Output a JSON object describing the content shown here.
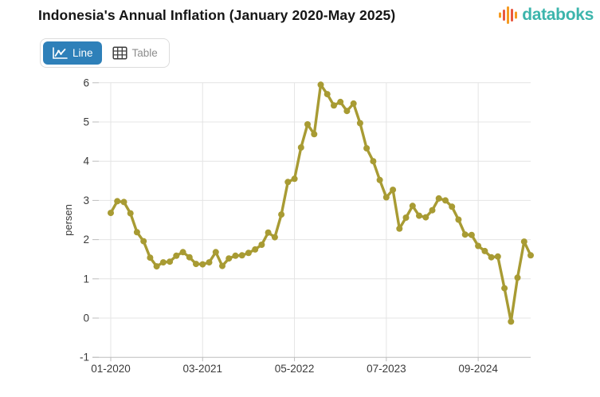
{
  "header": {
    "title": "Indonesia's Annual Inflation (January 2020-May 2025)",
    "brand": {
      "name": "databoks",
      "text_color": "#3cb5ac",
      "icon_colors": [
        "#f59b22",
        "#e9583f"
      ]
    }
  },
  "toolbar": {
    "line_label": "Line",
    "table_label": "Table",
    "active_color": "#2e80b9"
  },
  "chart_data": {
    "type": "line",
    "title": "Indonesia's Annual Inflation (January 2020-May 2025)",
    "xlabel": "",
    "ylabel": "persen",
    "ylim": [
      -1,
      6
    ],
    "yticks": [
      -1,
      0,
      1,
      2,
      3,
      4,
      5,
      6
    ],
    "x_start": "01-2020",
    "x_end": "05-2025",
    "x_tick_labels": [
      "01-2020",
      "03-2021",
      "05-2022",
      "07-2023",
      "09-2024"
    ],
    "x_tick_month_indices": [
      0,
      14,
      28,
      42,
      56
    ],
    "grid": true,
    "legend": false,
    "line_color": "#a89b33",
    "values": [
      2.68,
      2.98,
      2.96,
      2.67,
      2.19,
      1.96,
      1.54,
      1.32,
      1.42,
      1.44,
      1.59,
      1.68,
      1.55,
      1.38,
      1.37,
      1.42,
      1.68,
      1.33,
      1.52,
      1.59,
      1.6,
      1.66,
      1.75,
      1.87,
      2.18,
      2.06,
      2.64,
      3.47,
      3.55,
      4.35,
      4.94,
      4.69,
      5.95,
      5.71,
      5.42,
      5.51,
      5.28,
      5.47,
      4.97,
      4.33,
      4.0,
      3.52,
      3.08,
      3.27,
      2.28,
      2.56,
      2.86,
      2.61,
      2.57,
      2.75,
      3.05,
      3.0,
      2.84,
      2.51,
      2.13,
      2.12,
      1.84,
      1.71,
      1.55,
      1.57,
      0.76,
      -0.09,
      1.03,
      1.95,
      1.6
    ]
  }
}
